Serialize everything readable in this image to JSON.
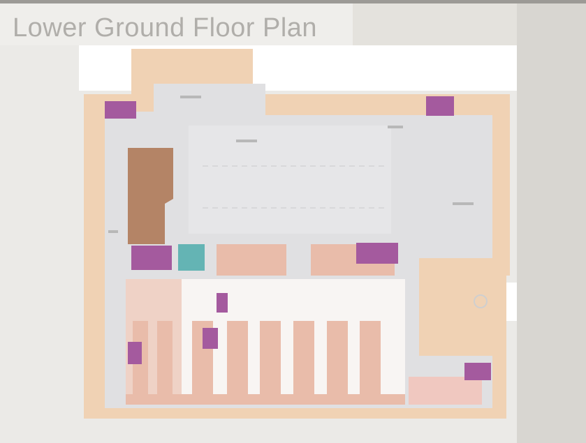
{
  "title": "Lower Ground Floor Plan",
  "colors": {
    "page_background": "#e4e2dd",
    "title_background": "#efeeeb",
    "title_text": "#b0aeaa",
    "outer_wall": "#f0d2b4",
    "corridor": "#e0e0e2",
    "shop_unit": "#e9bcaa",
    "anchor_store": "#b48466",
    "stairs_lifts": "#a45a9e",
    "escalator": "#64b4b4",
    "open_area": "#f8f5f3",
    "service_area": "#f0c8c0"
  },
  "icons": [
    "stairs-icon",
    "lift-icon",
    "escalator-icon",
    "compass-icon"
  ]
}
